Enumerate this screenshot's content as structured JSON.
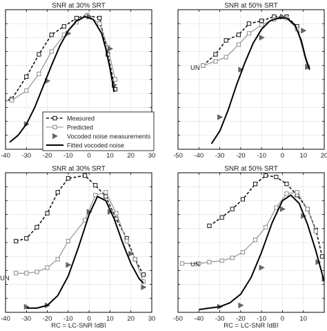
{
  "colors": {
    "axis": "#000000",
    "grid": "#bdbdbd",
    "measured": "#111111",
    "predicted": "#8a8a8a",
    "vocoded": "#666666",
    "fitted": "#000000"
  },
  "legend": {
    "placement": "top-left of bottom-left panel (overlapping)",
    "entries": [
      {
        "label": "Measured",
        "style": "dashed-square"
      },
      {
        "label": "Predicted",
        "style": "grey-square"
      },
      {
        "label": "Vocoded noise measurements",
        "style": "triangle"
      },
      {
        "label": "Fitted vocoded noise",
        "style": "solid"
      }
    ]
  },
  "chart_data": [
    {
      "id": "top-left",
      "type": "line",
      "title": "SNR at 30% SRT",
      "xlabel": "",
      "un_label": "",
      "xlim": [
        -40,
        30
      ],
      "ylim": [
        0,
        10
      ],
      "xticks": [
        -40,
        -30,
        -20,
        -10,
        0,
        10,
        20,
        30
      ],
      "xtick_labels": [
        "-40",
        "-30",
        "-20",
        "-10",
        "0",
        "10",
        "20",
        "30"
      ],
      "grid": true,
      "series": [
        {
          "name": "Measured",
          "x": [
            -43,
            -37,
            -30,
            -24,
            -18,
            -12,
            -6,
            -1,
            5,
            9,
            12.5
          ],
          "y": [
            3.4,
            3.6,
            5.2,
            6.8,
            8.2,
            8.8,
            9.4,
            9.6,
            9.4,
            6.8,
            4.3
          ]
        },
        {
          "name": "Predicted",
          "x": [
            -43,
            -37,
            -30,
            -24,
            -18,
            -12,
            -6,
            -1,
            5,
            9,
            12.5
          ],
          "y": [
            3.4,
            3.5,
            4.2,
            5.4,
            7.0,
            8.2,
            9.1,
            9.6,
            9.0,
            7.3,
            5.0
          ]
        },
        {
          "name": "Vocoded noise measurements",
          "x": [
            -30,
            -20,
            -10,
            0,
            10,
            12
          ],
          "y": [
            1.8,
            4.9,
            8.3,
            9.5,
            7.2,
            4.6
          ]
        },
        {
          "name": "Fitted vocoded noise",
          "x": [
            -38,
            -34,
            -30,
            -26,
            -22,
            -18,
            -14,
            -10,
            -6,
            -2,
            2,
            6,
            8,
            10,
            12
          ],
          "y": [
            0.5,
            1.0,
            1.8,
            3.0,
            4.5,
            6.0,
            7.4,
            8.5,
            9.2,
            9.5,
            9.3,
            8.3,
            7.2,
            5.8,
            4.1
          ]
        }
      ]
    },
    {
      "id": "top-right",
      "type": "line",
      "title": "SNR at 50% SRT",
      "xlabel": "",
      "un_label": "UN",
      "xlim": [
        -50,
        20
      ],
      "ylim": [
        0,
        10
      ],
      "xticks": [
        -50,
        -40,
        -30,
        -20,
        -10,
        0,
        10,
        20
      ],
      "xtick_labels": [
        "-50",
        "-40",
        "-30",
        "-20",
        "-10",
        "0",
        "10",
        "20"
      ],
      "grid": true,
      "series": [
        {
          "name": "Measured",
          "x": [
            -38,
            -32,
            -27,
            -21,
            -16,
            -10,
            -4,
            2,
            7,
            12
          ],
          "y": [
            6.0,
            6.8,
            7.8,
            8.2,
            9.0,
            9.2,
            9.5,
            9.5,
            8.8,
            5.9
          ]
        },
        {
          "name": "Predicted",
          "x": [
            -38,
            -32,
            -27,
            -21,
            -16,
            -10,
            -4,
            2,
            7,
            12
          ],
          "y": [
            6.0,
            6.3,
            6.6,
            7.5,
            8.3,
            8.9,
            9.3,
            9.4,
            8.6,
            5.9
          ]
        },
        {
          "name": "Vocoded noise measurements",
          "x": [
            -30,
            -20,
            -10,
            0,
            10,
            12
          ],
          "y": [
            2.3,
            5.7,
            8.0,
            9.5,
            8.5,
            5.9
          ]
        },
        {
          "name": "Fitted vocoded noise",
          "x": [
            -34,
            -30,
            -26,
            -22,
            -18,
            -14,
            -10,
            -6,
            -2,
            2,
            6,
            9,
            11,
            13
          ],
          "y": [
            0.4,
            1.3,
            2.8,
            4.6,
            6.2,
            7.6,
            8.6,
            9.2,
            9.4,
            9.4,
            8.9,
            7.8,
            6.6,
            5.7
          ]
        }
      ]
    },
    {
      "id": "bottom-left",
      "type": "line",
      "title": "SNR at 30% SRT",
      "xlabel": "RC = LC-SNR [dB]",
      "un_label": "UN",
      "xlim": [
        -40,
        30
      ],
      "ylim": [
        0,
        10
      ],
      "xticks": [
        -40,
        -30,
        -20,
        -10,
        0,
        10,
        20,
        30
      ],
      "xtick_labels": [
        "-40",
        "-30",
        "-20",
        "-10",
        "0",
        "10",
        "20",
        "30"
      ],
      "grid": true,
      "series": [
        {
          "name": "Measured",
          "x": [
            -35,
            -30,
            -25,
            -20,
            -15,
            -10,
            -2,
            3,
            8,
            13,
            18,
            22,
            26
          ],
          "y": [
            5.1,
            5.3,
            6.1,
            7.1,
            8.6,
            9.6,
            9.8,
            9.1,
            8.3,
            6.7,
            5.3,
            3.8,
            2.7
          ]
        },
        {
          "name": "Predicted",
          "x": [
            -35,
            -30,
            -25,
            -20,
            -15,
            -10,
            -2,
            3,
            8,
            13,
            18,
            22,
            26
          ],
          "y": [
            2.8,
            2.8,
            2.9,
            3.2,
            3.8,
            5.1,
            6.6,
            8.4,
            8.6,
            7.1,
            5.1,
            3.8,
            2.2
          ]
        },
        {
          "name": "Vocoded noise measurements",
          "x": [
            -30,
            -20,
            -10,
            0,
            10,
            20,
            26
          ],
          "y": [
            0.4,
            0.5,
            3.4,
            7.2,
            7.2,
            4.2,
            1.8
          ]
        },
        {
          "name": "Fitted vocoded noise",
          "x": [
            -30,
            -25,
            -20,
            -15,
            -10,
            -5,
            0,
            4,
            8,
            12,
            16,
            20,
            24,
            26
          ],
          "y": [
            0.3,
            0.3,
            0.5,
            1.2,
            2.6,
            4.7,
            7.0,
            8.3,
            8.0,
            6.7,
            5.0,
            3.5,
            2.4,
            2.1
          ]
        }
      ]
    },
    {
      "id": "bottom-right",
      "type": "line",
      "title": "SNR at 50% SRT",
      "xlabel": "RC = LC-SNR [dB]",
      "un_label": "UN",
      "xlim": [
        -50,
        20
      ],
      "ylim": [
        0,
        10
      ],
      "xticks": [
        -50,
        -40,
        -30,
        -20,
        -10,
        0,
        10
      ],
      "xtick_labels": [
        "-50",
        "-40",
        "-30",
        "-20",
        "-10",
        "0",
        "10"
      ],
      "grid": true,
      "series": [
        {
          "name": "Measured",
          "x": [
            -35,
            -29,
            -24,
            -19,
            -13,
            -8,
            -3,
            2,
            7,
            12,
            16,
            19
          ],
          "y": [
            6.2,
            6.8,
            7.4,
            8.1,
            9.2,
            9.8,
            9.7,
            9.2,
            8.4,
            7.4,
            5.9,
            4.0
          ]
        },
        {
          "name": "Predicted",
          "x": [
            -48,
            -40,
            -35,
            -29,
            -24,
            -19,
            -13,
            -8,
            -3,
            2,
            7,
            12,
            16
          ],
          "y": [
            3.5,
            3.5,
            3.6,
            3.7,
            3.9,
            4.3,
            5.2,
            6.1,
            7.5,
            8.5,
            8.6,
            7.4,
            5.8
          ]
        },
        {
          "name": "Vocoded noise measurements",
          "x": [
            -30,
            -20,
            -10,
            0,
            10,
            17,
            20
          ],
          "y": [
            0.4,
            0.5,
            3.2,
            7.4,
            6.9,
            3.6,
            2.4
          ]
        },
        {
          "name": "Fitted vocoded noise",
          "x": [
            -40,
            -35,
            -30,
            -25,
            -20,
            -15,
            -10,
            -5,
            0,
            4,
            8,
            12,
            16,
            20
          ],
          "y": [
            0.2,
            0.3,
            0.4,
            0.7,
            1.3,
            2.5,
            4.3,
            6.4,
            8.0,
            8.4,
            7.8,
            6.3,
            4.4,
            2.2
          ]
        }
      ]
    }
  ]
}
